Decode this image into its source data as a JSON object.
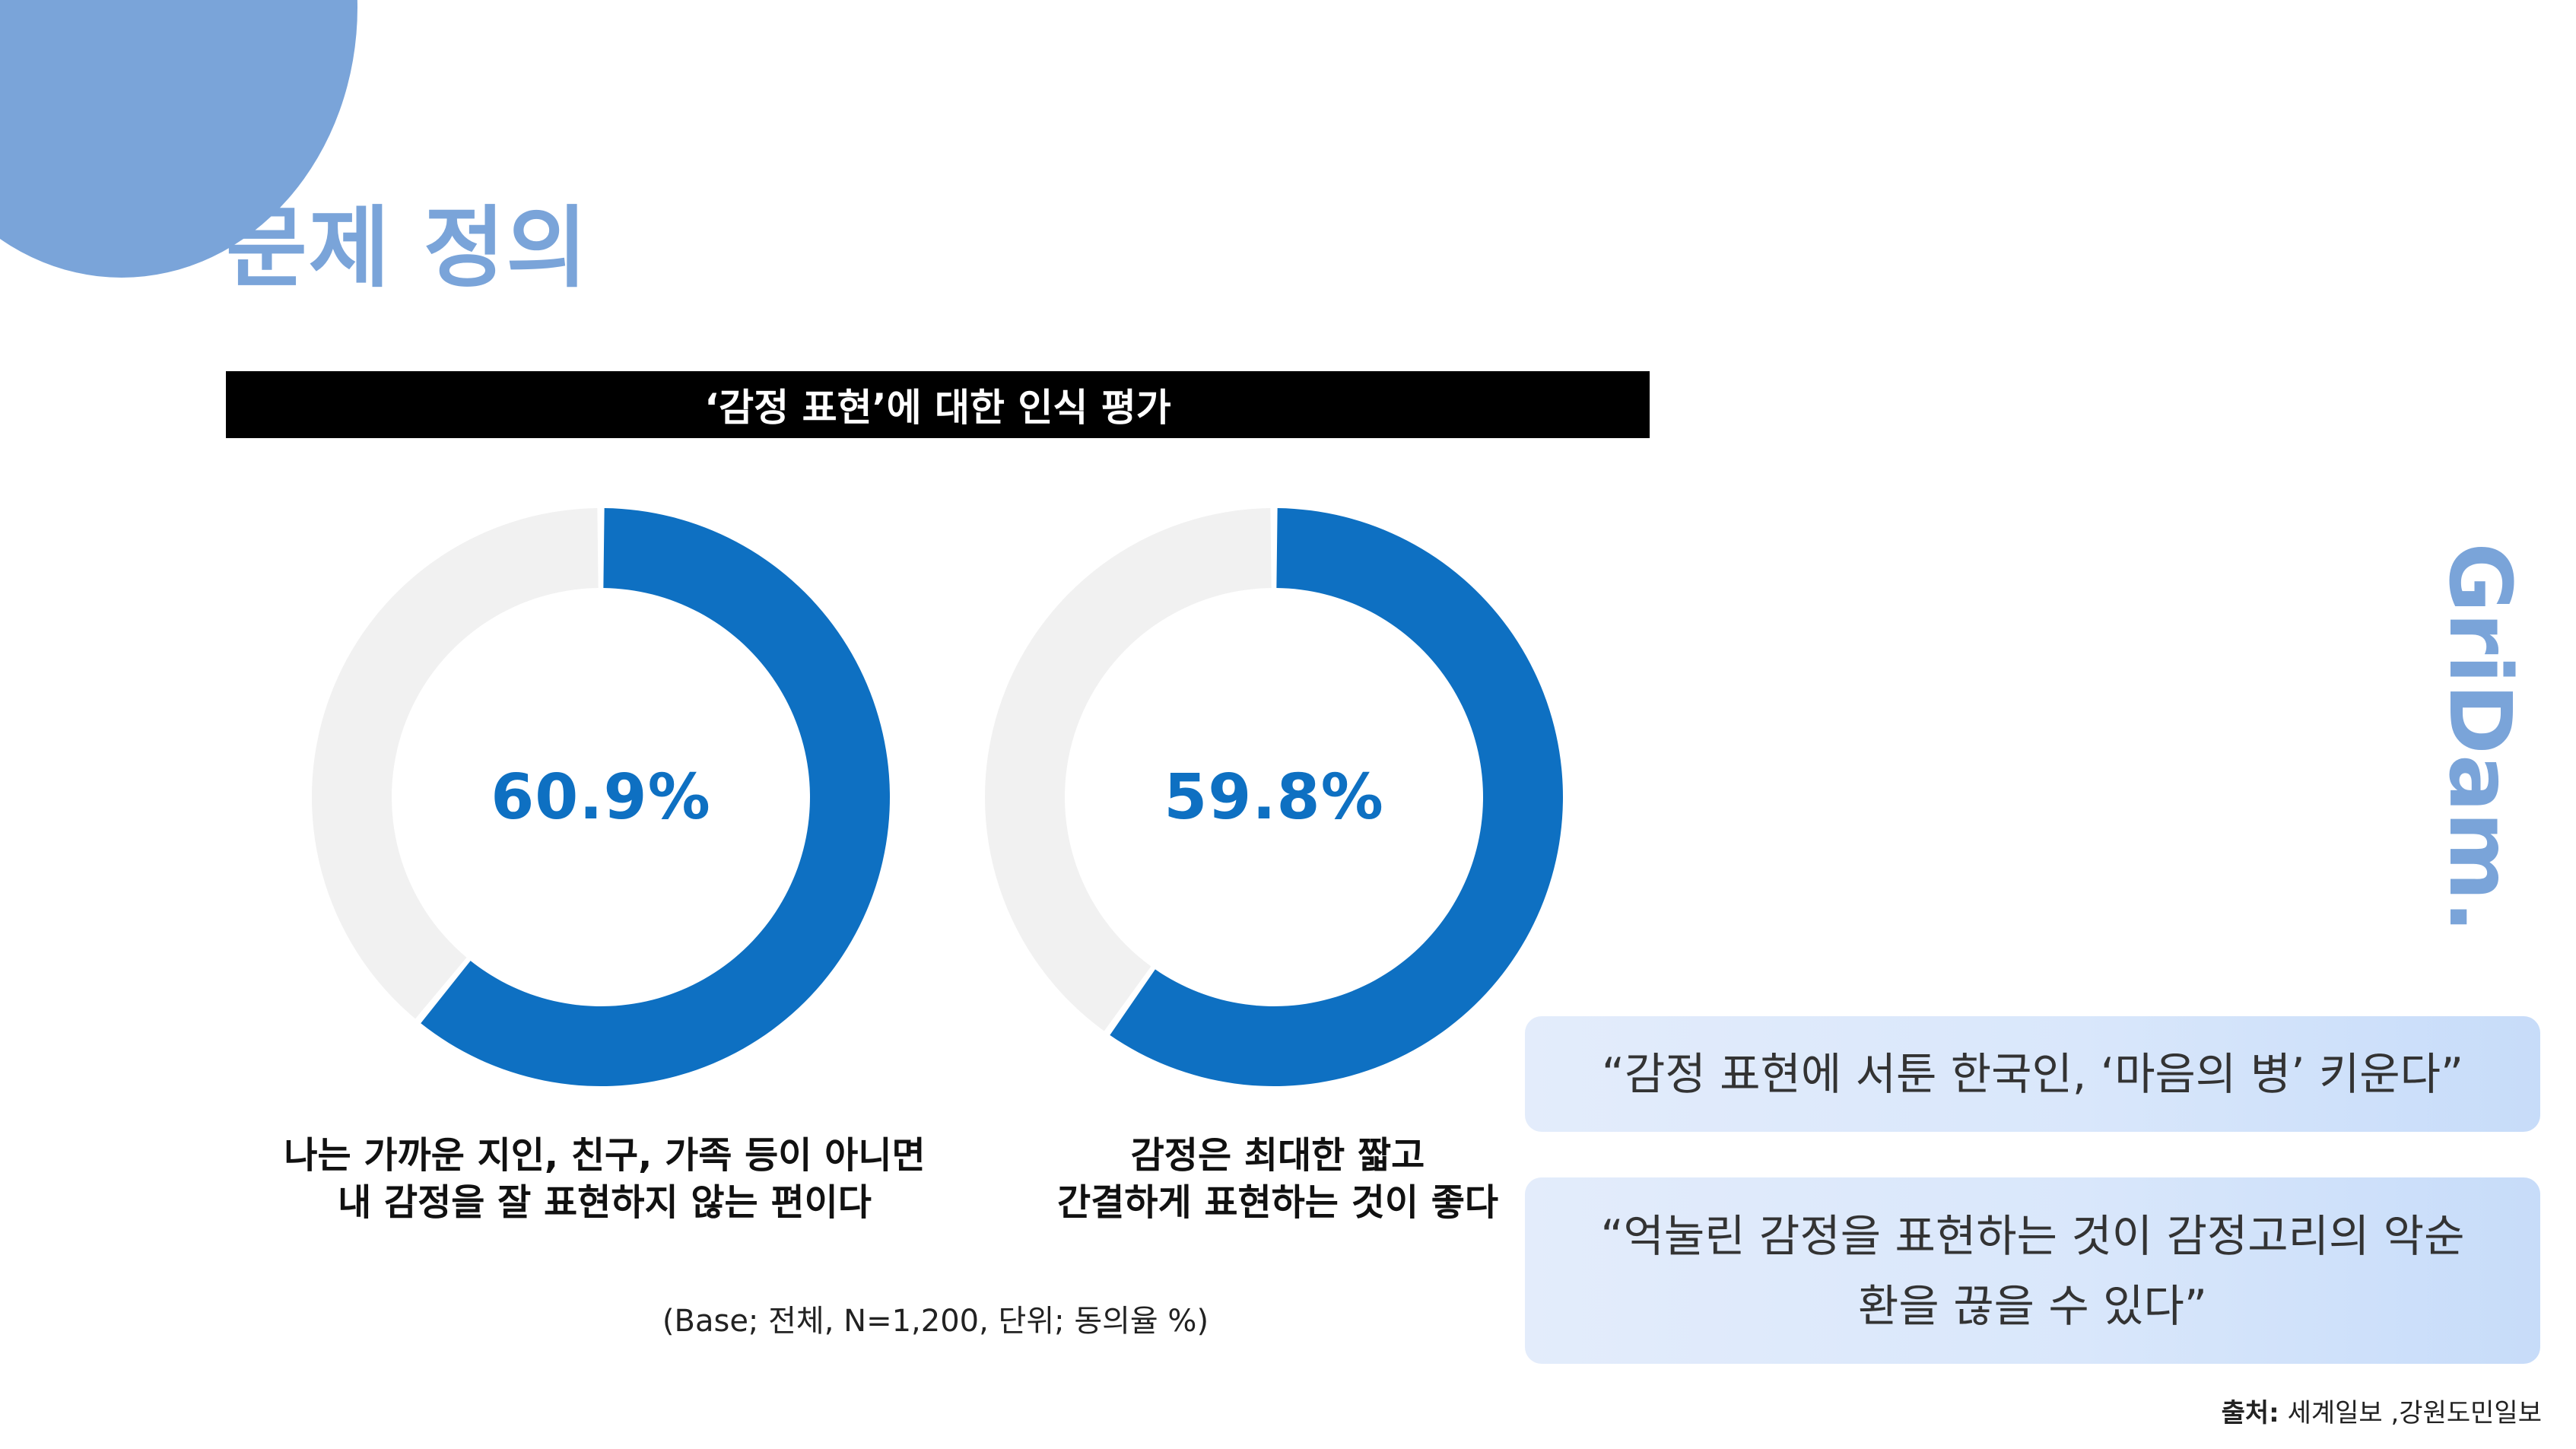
{
  "page": {
    "title": "문제 정의",
    "brand": "GriDam.",
    "source_label": "출처:",
    "source_text": " 세계일보 ,강원도민일보"
  },
  "colors": {
    "accent": "#7aa4d9",
    "donut_fill": "#0e70c2",
    "donut_track": "#f1f1f1",
    "title_bar": "#000000"
  },
  "chart_data": [
    {
      "type": "pie",
      "variant": "donut",
      "title": "‘감정 표현’에 대한 인식 평가",
      "values": [
        60.9,
        39.1
      ],
      "value_label": "60.9%",
      "caption": [
        "나는 가까운 지인, 친구, 가족 등이 아니면",
        "내 감정을 잘 표현하지 않는 편이다"
      ]
    },
    {
      "type": "pie",
      "variant": "donut",
      "title": "‘감정 표현’에 대한 인식 평가",
      "values": [
        59.8,
        40.2
      ],
      "value_label": "59.8%",
      "caption": [
        "감정은 최대한 짧고",
        "간결하게 표현하는 것이 좋다"
      ]
    }
  ],
  "chart": {
    "note": "(Base; 전체, N=1,200, 단위; 동의율 %)"
  },
  "quotes": [
    {
      "lines": [
        "“감정 표현에 서툰 한국인, ‘마음의 병’ 키운다”"
      ]
    },
    {
      "lines": [
        "“억눌린 감정을 표현하는 것이 감정고리의 악순",
        "환을 끊을 수 있다”"
      ]
    }
  ]
}
